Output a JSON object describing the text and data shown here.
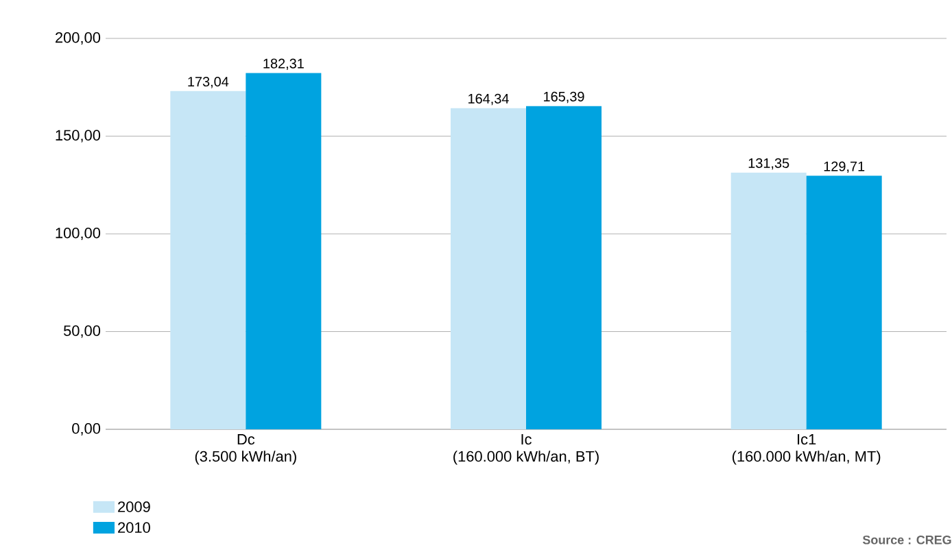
{
  "chart_data": {
    "type": "bar",
    "categories": [
      "Dc\n(3.500 kWh/an)",
      "Ic\n(160.000 kWh/an, BT)",
      "Ic1\n(160.000 kWh/an, MT)"
    ],
    "series": [
      {
        "name": "2009",
        "color": "#c6e6f6",
        "values": [
          173.04,
          164.34,
          131.35
        ],
        "value_labels": [
          "173,04",
          "164,34",
          "131,35"
        ]
      },
      {
        "name": "2010",
        "color": "#00a3e0",
        "values": [
          182.31,
          165.39,
          129.71
        ],
        "value_labels": [
          "182,31",
          "165,39",
          "129,71"
        ]
      }
    ],
    "ylim": [
      0,
      200
    ],
    "yticks": [
      {
        "value": 0,
        "label": "0,00"
      },
      {
        "value": 50,
        "label": "50,00"
      },
      {
        "value": 100,
        "label": "100,00"
      },
      {
        "value": 150,
        "label": "150,00"
      },
      {
        "value": 200,
        "label": "200,00"
      }
    ],
    "grid": "y",
    "legend": "bottom left",
    "annotations": [
      "Source : CREG"
    ]
  }
}
